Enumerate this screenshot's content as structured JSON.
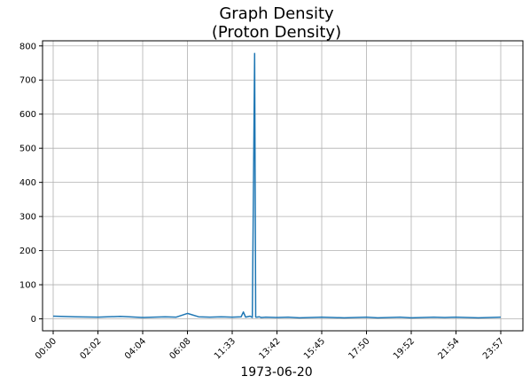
{
  "chart_data": {
    "type": "line",
    "title": "Graph Density",
    "subtitle": "(Proton Density)",
    "xlabel": "1973-06-20",
    "ylabel": "",
    "x_tick_labels": [
      "00:00",
      "02:02",
      "04:04",
      "06:08",
      "11:33",
      "13:42",
      "15:45",
      "17:50",
      "19:52",
      "21:54",
      "23:57"
    ],
    "y_ticks": [
      0,
      100,
      200,
      300,
      400,
      500,
      600,
      700,
      800
    ],
    "ylim": [
      -35,
      815
    ],
    "grid": true,
    "line_color": "#1f77b4",
    "series": [
      {
        "x": [
          0,
          1,
          2,
          3,
          4,
          5,
          5.5,
          6,
          6.5,
          7,
          7.5,
          8,
          8.4,
          8.5,
          8.6,
          8.8,
          8.9,
          9,
          9.05,
          9.1,
          9.2,
          9.3,
          9.5,
          10,
          10.5,
          11,
          11.5,
          12,
          12.5,
          13,
          13.5,
          14,
          14.5,
          15,
          15.5,
          16,
          16.5,
          17,
          17.5,
          18,
          18.5,
          19,
          19.5,
          20
        ],
        "values": [
          8,
          6,
          5,
          7,
          4,
          6,
          5,
          16,
          6,
          5,
          6,
          5,
          6,
          20,
          5,
          8,
          4,
          778,
          5,
          5,
          6,
          4,
          5,
          4,
          5,
          3,
          4,
          5,
          4,
          3,
          4,
          5,
          3,
          4,
          5,
          3,
          4,
          5,
          4,
          5,
          4,
          3,
          4,
          5
        ]
      }
    ]
  }
}
